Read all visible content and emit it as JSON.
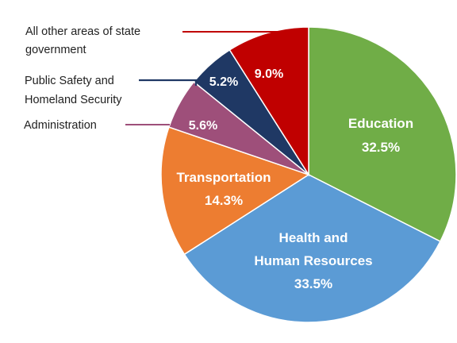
{
  "chart_data": {
    "type": "pie",
    "slices": [
      {
        "key": "education",
        "label_lines": [
          "Education"
        ],
        "value_label": "32.5%",
        "value": 32.5,
        "color": "#70AD47"
      },
      {
        "key": "health",
        "label_lines": [
          "Health and",
          "Human Resources"
        ],
        "value_label": "33.5%",
        "value": 33.5,
        "color": "#5B9BD5"
      },
      {
        "key": "transportation",
        "label_lines": [
          "Transportation"
        ],
        "value_label": "14.3%",
        "value": 14.3,
        "color": "#ED7D31"
      },
      {
        "key": "administration",
        "label_lines": [
          "Administration"
        ],
        "value_label": "5.6%",
        "value": 5.6,
        "color": "#9E4F7A"
      },
      {
        "key": "public-safety",
        "label_lines": [
          "Public Safety and",
          "Homeland Security"
        ],
        "value_label": "5.2%",
        "value": 5.2,
        "color": "#1F3864"
      },
      {
        "key": "other",
        "label_lines": [
          "All other areas of state",
          "government"
        ],
        "value_label": "9.0%",
        "value": 9.0,
        "color": "#C00000"
      }
    ]
  }
}
